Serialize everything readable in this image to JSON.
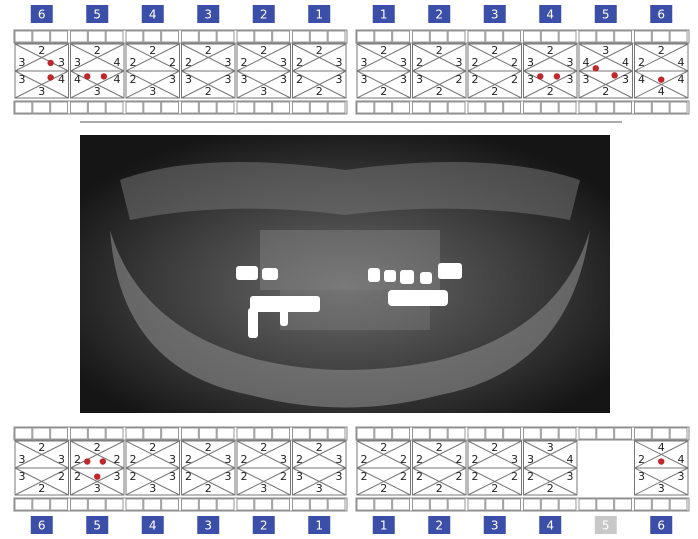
{
  "top_chart": {
    "left": {
      "teeth": [
        {
          "number": "6",
          "values": [
            2,
            3,
            3,
            3,
            4,
            3
          ]
        },
        {
          "number": "5",
          "values": [
            2,
            3,
            4,
            4,
            4,
            3
          ]
        },
        {
          "number": "4",
          "values": [
            2,
            2,
            2,
            2,
            3,
            3
          ]
        },
        {
          "number": "3",
          "values": [
            2,
            2,
            3,
            3,
            3,
            2
          ]
        },
        {
          "number": "2",
          "values": [
            2,
            2,
            3,
            3,
            3,
            3
          ]
        },
        {
          "number": "1",
          "values": [
            2,
            2,
            3,
            2,
            3,
            2
          ]
        }
      ]
    },
    "right": {
      "teeth": [
        {
          "number": "1",
          "values": [
            2,
            3,
            3,
            3,
            3,
            2
          ]
        },
        {
          "number": "2",
          "values": [
            2,
            2,
            3,
            3,
            2,
            2
          ]
        },
        {
          "number": "3",
          "values": [
            2,
            2,
            2,
            2,
            2,
            2
          ]
        },
        {
          "number": "4",
          "values": [
            2,
            3,
            3,
            3,
            3,
            2
          ]
        },
        {
          "number": "5",
          "values": [
            3,
            4,
            4,
            3,
            3,
            2
          ]
        },
        {
          "number": "6",
          "values": [
            2,
            2,
            4,
            4,
            4,
            4
          ]
        }
      ]
    }
  },
  "bottom_chart": {
    "left": {
      "teeth": [
        {
          "number": "6",
          "values": [
            2,
            3,
            3,
            3,
            2,
            2
          ]
        },
        {
          "number": "5",
          "values": [
            2,
            2,
            2,
            2,
            3,
            3
          ]
        },
        {
          "number": "4",
          "values": [
            2,
            2,
            3,
            2,
            3,
            3
          ]
        },
        {
          "number": "3",
          "values": [
            2,
            2,
            3,
            2,
            3,
            2
          ]
        },
        {
          "number": "2",
          "values": [
            2,
            2,
            3,
            2,
            2,
            3
          ]
        },
        {
          "number": "1",
          "values": [
            2,
            2,
            3,
            3,
            3,
            3
          ]
        }
      ]
    },
    "right": {
      "teeth": [
        {
          "number": "1",
          "values": [
            2,
            2,
            2,
            2,
            2,
            2
          ]
        },
        {
          "number": "2",
          "values": [
            2,
            2,
            2,
            2,
            2,
            2
          ]
        },
        {
          "number": "3",
          "values": [
            2,
            2,
            3,
            2,
            2,
            2
          ]
        },
        {
          "number": "4",
          "values": [
            3,
            3,
            4,
            2,
            3,
            2
          ]
        },
        {
          "number": "5"
        },
        {
          "number": "6",
          "values": [
            4,
            2,
            4,
            3,
            3,
            3
          ]
        }
      ]
    }
  }
}
